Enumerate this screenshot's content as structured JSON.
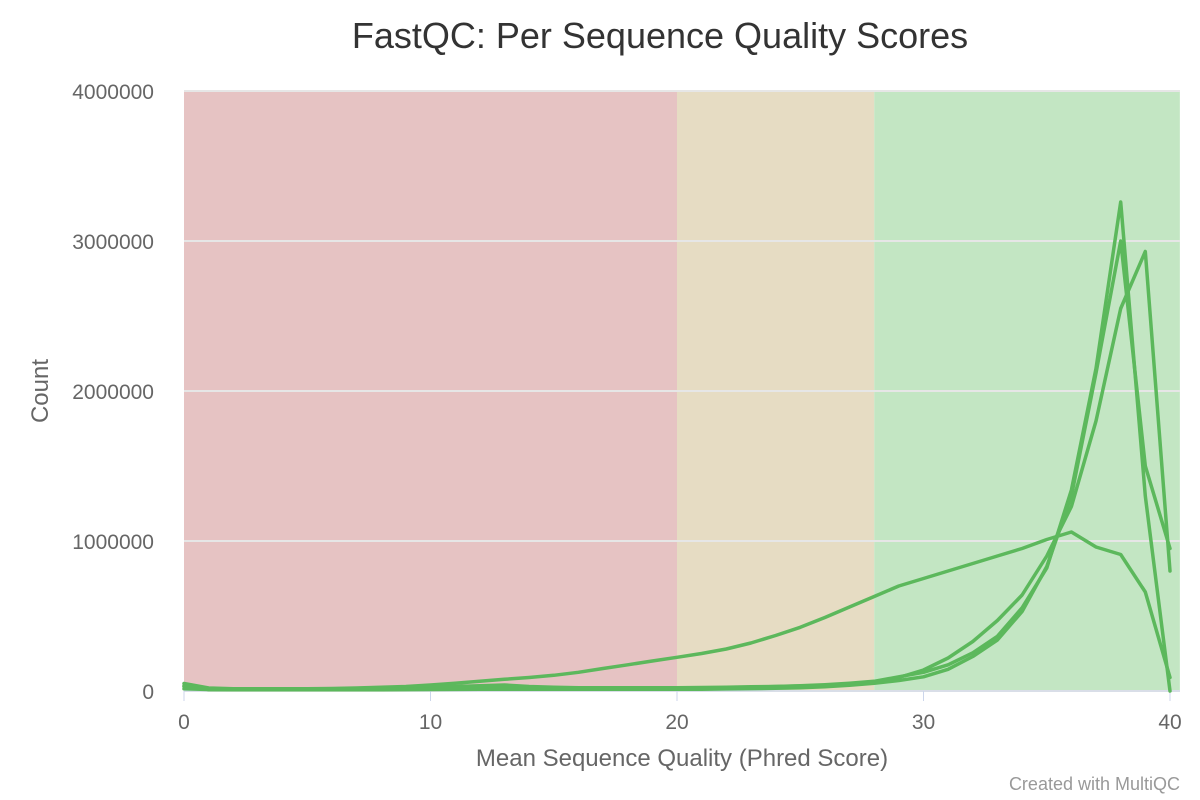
{
  "chart_data": {
    "type": "line",
    "title": "FastQC: Per Sequence Quality Scores",
    "xlabel": "Mean Sequence Quality (Phred Score)",
    "ylabel": "Count",
    "xlim": [
      0,
      40
    ],
    "ylim": [
      0,
      4000000
    ],
    "xticks": [
      0,
      10,
      20,
      30,
      40
    ],
    "yticks": [
      0,
      1000000,
      2000000,
      3000000,
      4000000
    ],
    "grid": true,
    "line_color": "#5cb85c",
    "bands": [
      {
        "from": 0,
        "to": 20,
        "color": "#e6c3c3"
      },
      {
        "from": 20,
        "to": 28,
        "color": "#e6dcc3"
      },
      {
        "from": 28,
        "to": 40.4,
        "color": "#c3e6c3"
      }
    ],
    "series": [
      {
        "x": [
          0,
          1,
          2,
          3,
          4,
          5,
          6,
          7,
          8,
          9,
          10,
          11,
          12,
          13,
          14,
          15,
          16,
          17,
          18,
          19,
          20,
          21,
          22,
          23,
          24,
          25,
          26,
          27,
          28,
          29,
          30,
          31,
          32,
          33,
          34,
          35,
          36,
          37,
          38,
          39,
          40
        ],
        "values": [
          50000,
          20000,
          15000,
          15000,
          15000,
          15000,
          17000,
          20000,
          25000,
          30000,
          40000,
          52000,
          65000,
          78000,
          90000,
          105000,
          125000,
          150000,
          175000,
          200000,
          225000,
          250000,
          280000,
          320000,
          370000,
          425000,
          490000,
          560000,
          630000,
          700000,
          750000,
          800000,
          850000,
          900000,
          950000,
          1010000,
          1060000,
          960000,
          910000,
          660000,
          90000
        ]
      },
      {
        "x": [
          0,
          1,
          2,
          3,
          4,
          5,
          6,
          7,
          8,
          9,
          10,
          11,
          12,
          13,
          14,
          15,
          16,
          17,
          18,
          19,
          20,
          21,
          22,
          23,
          24,
          25,
          26,
          27,
          28,
          29,
          30,
          31,
          32,
          33,
          34,
          35,
          36,
          37,
          38,
          39,
          40
        ],
        "values": [
          15000,
          10000,
          10000,
          10000,
          10000,
          10000,
          12000,
          15000,
          18000,
          20000,
          25000,
          30000,
          35000,
          40000,
          30000,
          25000,
          22000,
          22000,
          22000,
          22000,
          22000,
          23000,
          25000,
          28000,
          30000,
          33000,
          38000,
          45000,
          60000,
          90000,
          140000,
          220000,
          330000,
          470000,
          640000,
          900000,
          1230000,
          1800000,
          2550000,
          2930000,
          800000
        ]
      },
      {
        "x": [
          0,
          1,
          2,
          3,
          4,
          5,
          6,
          7,
          8,
          9,
          10,
          11,
          12,
          13,
          14,
          15,
          16,
          17,
          18,
          19,
          20,
          21,
          22,
          23,
          24,
          25,
          26,
          27,
          28,
          29,
          30,
          31,
          32,
          33,
          34,
          35,
          36,
          37,
          38,
          39,
          40
        ],
        "values": [
          35000,
          10000,
          10000,
          10000,
          10000,
          10000,
          10000,
          10000,
          12000,
          13000,
          15000,
          17000,
          18000,
          20000,
          20000,
          20000,
          20000,
          20000,
          20000,
          20000,
          20000,
          20000,
          22000,
          25000,
          30000,
          35000,
          42000,
          52000,
          65000,
          95000,
          125000,
          175000,
          255000,
          365000,
          555000,
          820000,
          1340000,
          2150000,
          3260000,
          1300000,
          0
        ]
      },
      {
        "x": [
          0,
          1,
          2,
          3,
          4,
          5,
          6,
          7,
          8,
          9,
          10,
          11,
          12,
          13,
          14,
          15,
          16,
          17,
          18,
          19,
          20,
          21,
          22,
          23,
          24,
          25,
          26,
          27,
          28,
          29,
          30,
          31,
          32,
          33,
          34,
          35,
          36,
          37,
          38,
          39,
          40
        ],
        "values": [
          30000,
          10000,
          8000,
          8000,
          8000,
          8000,
          8000,
          8000,
          8000,
          9000,
          10000,
          11000,
          12000,
          12000,
          12000,
          12000,
          12000,
          12000,
          12000,
          12000,
          12000,
          12000,
          14000,
          16000,
          18000,
          22000,
          28000,
          38000,
          52000,
          70000,
          95000,
          145000,
          230000,
          340000,
          530000,
          830000,
          1300000,
          2120000,
          3000000,
          1500000,
          950000
        ]
      }
    ]
  },
  "credit": "Created with MultiQC"
}
